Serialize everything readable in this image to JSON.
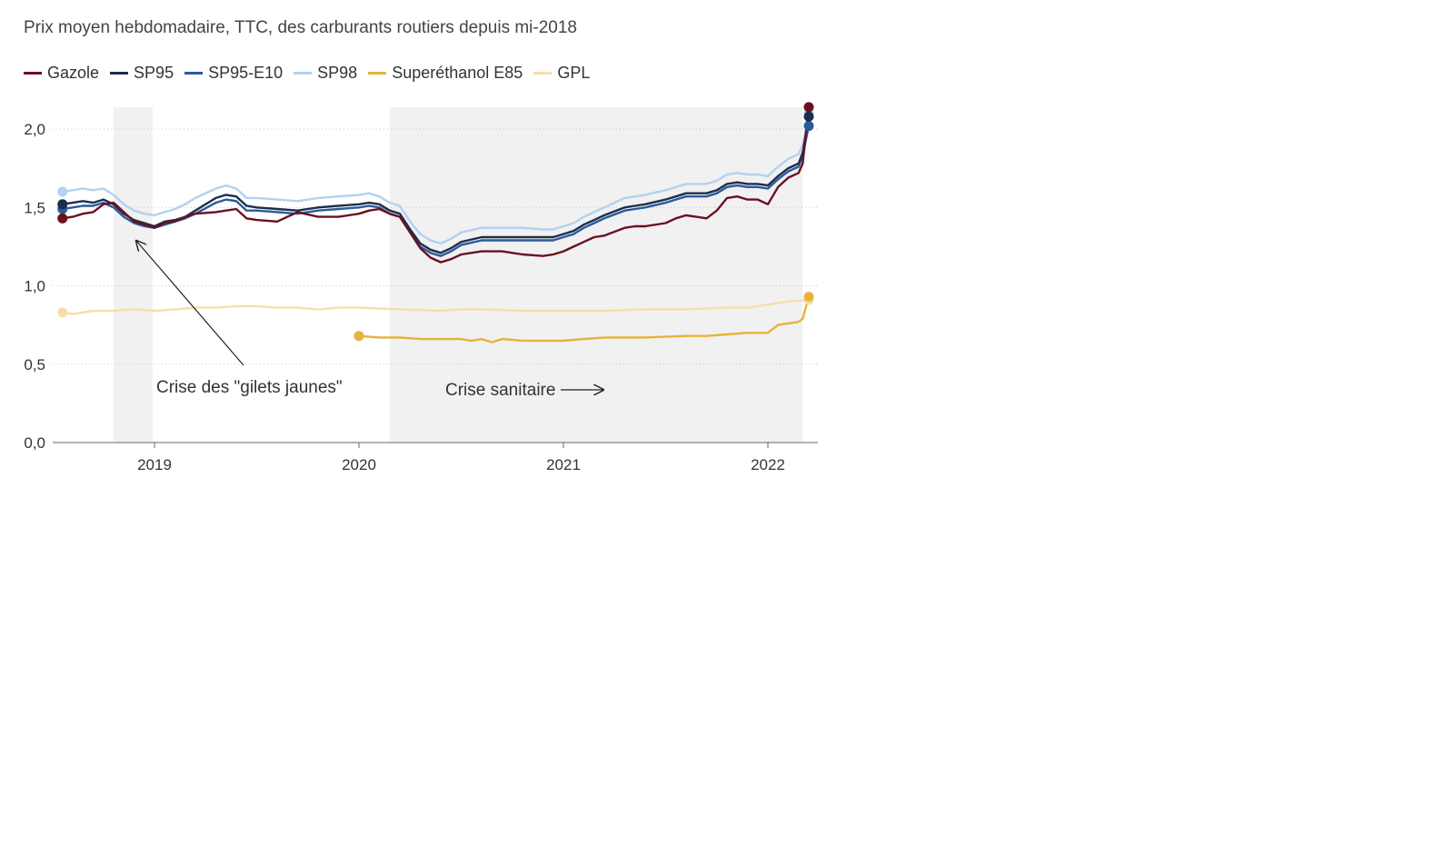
{
  "chart_data": {
    "type": "line",
    "title": "Prix moyen hebdomadaire, TTC, des carburants routiers depuis mi-2018",
    "xlabel": "",
    "ylabel": "",
    "xlim": [
      2018.55,
      2022.26
    ],
    "ylim": [
      0,
      2.2
    ],
    "y_ticks": [
      0,
      0.5,
      1,
      1.5,
      2
    ],
    "y_tick_labels": [
      "0,0",
      "0,5",
      "1,0",
      "1,5",
      "2,0"
    ],
    "x_ticks": [
      2019,
      2020,
      2021,
      2022
    ],
    "x_tick_labels": [
      "2019",
      "2020",
      "2021",
      "2022"
    ],
    "grid": "horizontal dotted",
    "legend_position": "top-left",
    "shaded_periods": [
      {
        "name": "gilets-jaunes",
        "start": 2018.8,
        "end": 2018.99
      },
      {
        "name": "crise-sanitaire",
        "start": 2020.15,
        "end": 2022.17
      }
    ],
    "annotations": [
      {
        "text": "Crise des \"gilets jaunes\""
      },
      {
        "text": "Crise sanitaire"
      }
    ],
    "series": [
      {
        "name": "Gazole",
        "color": "#6b1020",
        "x": [
          2018.55,
          2018.6,
          2018.65,
          2018.7,
          2018.75,
          2018.8,
          2018.85,
          2018.9,
          2018.95,
          2019.0,
          2019.05,
          2019.1,
          2019.15,
          2019.2,
          2019.3,
          2019.35,
          2019.4,
          2019.45,
          2019.5,
          2019.6,
          2019.7,
          2019.8,
          2019.9,
          2020.0,
          2020.05,
          2020.1,
          2020.15,
          2020.2,
          2020.25,
          2020.3,
          2020.35,
          2020.4,
          2020.45,
          2020.5,
          2020.6,
          2020.7,
          2020.75,
          2020.8,
          2020.9,
          2020.95,
          2021.0,
          2021.05,
          2021.1,
          2021.15,
          2021.2,
          2021.3,
          2021.35,
          2021.4,
          2021.5,
          2021.55,
          2021.6,
          2021.65,
          2021.7,
          2021.75,
          2021.8,
          2021.85,
          2021.9,
          2021.95,
          2022.0,
          2022.05,
          2022.1,
          2022.15,
          2022.17,
          2022.2
        ],
        "values": [
          1.43,
          1.44,
          1.46,
          1.47,
          1.52,
          1.53,
          1.47,
          1.41,
          1.39,
          1.37,
          1.4,
          1.41,
          1.44,
          1.46,
          1.47,
          1.48,
          1.49,
          1.43,
          1.42,
          1.41,
          1.47,
          1.44,
          1.44,
          1.46,
          1.48,
          1.49,
          1.46,
          1.44,
          1.34,
          1.24,
          1.18,
          1.15,
          1.17,
          1.2,
          1.22,
          1.22,
          1.21,
          1.2,
          1.19,
          1.2,
          1.22,
          1.25,
          1.28,
          1.31,
          1.32,
          1.37,
          1.38,
          1.38,
          1.4,
          1.43,
          1.45,
          1.44,
          1.43,
          1.48,
          1.56,
          1.57,
          1.55,
          1.55,
          1.52,
          1.63,
          1.69,
          1.72,
          1.78,
          2.14
        ]
      },
      {
        "name": "SP95",
        "color": "#1b2e4e",
        "x": [
          2018.55,
          2018.6,
          2018.65,
          2018.7,
          2018.75,
          2018.8,
          2018.85,
          2018.9,
          2018.95,
          2019.0,
          2019.05,
          2019.1,
          2019.15,
          2019.2,
          2019.3,
          2019.35,
          2019.4,
          2019.45,
          2019.5,
          2019.6,
          2019.7,
          2019.8,
          2019.9,
          2020.0,
          2020.05,
          2020.1,
          2020.15,
          2020.2,
          2020.25,
          2020.3,
          2020.35,
          2020.4,
          2020.45,
          2020.5,
          2020.6,
          2020.7,
          2020.75,
          2020.8,
          2020.9,
          2020.95,
          2021.0,
          2021.05,
          2021.1,
          2021.15,
          2021.2,
          2021.3,
          2021.35,
          2021.4,
          2021.5,
          2021.55,
          2021.6,
          2021.65,
          2021.7,
          2021.75,
          2021.8,
          2021.85,
          2021.9,
          2021.95,
          2022.0,
          2022.05,
          2022.1,
          2022.15,
          2022.17,
          2022.2
        ],
        "values": [
          1.52,
          1.53,
          1.54,
          1.53,
          1.55,
          1.52,
          1.46,
          1.42,
          1.4,
          1.38,
          1.41,
          1.42,
          1.44,
          1.48,
          1.56,
          1.58,
          1.57,
          1.51,
          1.5,
          1.49,
          1.48,
          1.5,
          1.51,
          1.52,
          1.53,
          1.52,
          1.48,
          1.46,
          1.36,
          1.27,
          1.23,
          1.21,
          1.24,
          1.28,
          1.31,
          1.31,
          1.31,
          1.31,
          1.31,
          1.31,
          1.33,
          1.35,
          1.39,
          1.42,
          1.45,
          1.5,
          1.51,
          1.52,
          1.55,
          1.57,
          1.59,
          1.59,
          1.59,
          1.61,
          1.65,
          1.66,
          1.65,
          1.65,
          1.64,
          1.7,
          1.75,
          1.78,
          1.85,
          2.08
        ]
      },
      {
        "name": "SP95-E10",
        "color": "#2a5a9c",
        "x": [
          2018.55,
          2018.6,
          2018.65,
          2018.7,
          2018.75,
          2018.8,
          2018.85,
          2018.9,
          2018.95,
          2019.0,
          2019.05,
          2019.1,
          2019.15,
          2019.2,
          2019.3,
          2019.35,
          2019.4,
          2019.45,
          2019.5,
          2019.6,
          2019.7,
          2019.8,
          2019.9,
          2020.0,
          2020.05,
          2020.1,
          2020.15,
          2020.2,
          2020.25,
          2020.3,
          2020.35,
          2020.4,
          2020.45,
          2020.5,
          2020.6,
          2020.7,
          2020.75,
          2020.8,
          2020.9,
          2020.95,
          2021.0,
          2021.05,
          2021.1,
          2021.15,
          2021.2,
          2021.3,
          2021.35,
          2021.4,
          2021.5,
          2021.55,
          2021.6,
          2021.65,
          2021.7,
          2021.75,
          2021.8,
          2021.85,
          2021.9,
          2021.95,
          2022.0,
          2022.05,
          2022.1,
          2022.15,
          2022.17,
          2022.2
        ],
        "values": [
          1.49,
          1.5,
          1.51,
          1.51,
          1.53,
          1.5,
          1.44,
          1.4,
          1.38,
          1.37,
          1.39,
          1.41,
          1.43,
          1.46,
          1.53,
          1.55,
          1.54,
          1.48,
          1.48,
          1.47,
          1.46,
          1.48,
          1.49,
          1.5,
          1.51,
          1.5,
          1.46,
          1.44,
          1.34,
          1.25,
          1.21,
          1.19,
          1.22,
          1.26,
          1.29,
          1.29,
          1.29,
          1.29,
          1.29,
          1.29,
          1.31,
          1.33,
          1.37,
          1.4,
          1.43,
          1.48,
          1.49,
          1.5,
          1.53,
          1.55,
          1.57,
          1.57,
          1.57,
          1.59,
          1.63,
          1.64,
          1.63,
          1.63,
          1.62,
          1.68,
          1.73,
          1.76,
          1.83,
          2.02
        ]
      },
      {
        "name": "SP98",
        "color": "#b3d1f0",
        "x": [
          2018.55,
          2018.6,
          2018.65,
          2018.7,
          2018.75,
          2018.8,
          2018.85,
          2018.9,
          2018.95,
          2019.0,
          2019.05,
          2019.1,
          2019.15,
          2019.2,
          2019.3,
          2019.35,
          2019.4,
          2019.45,
          2019.5,
          2019.6,
          2019.7,
          2019.8,
          2019.9,
          2020.0,
          2020.05,
          2020.1,
          2020.15,
          2020.2,
          2020.25,
          2020.3,
          2020.35,
          2020.4,
          2020.45,
          2020.5,
          2020.6,
          2020.7,
          2020.75,
          2020.8,
          2020.9,
          2020.95,
          2021.0,
          2021.05,
          2021.1,
          2021.15,
          2021.2,
          2021.3,
          2021.35,
          2021.4,
          2021.5,
          2021.55,
          2021.6,
          2021.65,
          2021.7,
          2021.75,
          2021.8,
          2021.85,
          2021.9,
          2021.95,
          2022.0,
          2022.05,
          2022.1,
          2022.15,
          2022.17,
          2022.2
        ],
        "values": [
          1.6,
          1.61,
          1.62,
          1.61,
          1.62,
          1.58,
          1.52,
          1.48,
          1.46,
          1.45,
          1.47,
          1.49,
          1.52,
          1.56,
          1.62,
          1.64,
          1.62,
          1.56,
          1.56,
          1.55,
          1.54,
          1.56,
          1.57,
          1.58,
          1.59,
          1.57,
          1.53,
          1.51,
          1.41,
          1.33,
          1.29,
          1.27,
          1.3,
          1.34,
          1.37,
          1.37,
          1.37,
          1.37,
          1.36,
          1.36,
          1.38,
          1.4,
          1.44,
          1.47,
          1.5,
          1.56,
          1.57,
          1.58,
          1.61,
          1.63,
          1.65,
          1.65,
          1.65,
          1.67,
          1.71,
          1.72,
          1.71,
          1.71,
          1.7,
          1.76,
          1.81,
          1.84,
          1.9,
          2.1
        ]
      },
      {
        "name": "Superéthanol E85",
        "color": "#e8b23a",
        "x": [
          2020.0,
          2020.1,
          2020.2,
          2020.3,
          2020.4,
          2020.5,
          2020.55,
          2020.6,
          2020.65,
          2020.7,
          2020.8,
          2020.9,
          2021.0,
          2021.1,
          2021.2,
          2021.4,
          2021.6,
          2021.7,
          2021.8,
          2021.9,
          2022.0,
          2022.05,
          2022.15,
          2022.17,
          2022.2
        ],
        "values": [
          0.68,
          0.67,
          0.67,
          0.66,
          0.66,
          0.66,
          0.65,
          0.66,
          0.64,
          0.66,
          0.65,
          0.65,
          0.65,
          0.66,
          0.67,
          0.67,
          0.68,
          0.68,
          0.69,
          0.7,
          0.7,
          0.75,
          0.77,
          0.79,
          0.93
        ]
      },
      {
        "name": "GPL",
        "color": "#f5dfa8",
        "x": [
          2018.55,
          2018.6,
          2018.7,
          2018.8,
          2018.9,
          2019.0,
          2019.1,
          2019.2,
          2019.3,
          2019.4,
          2019.5,
          2019.6,
          2019.7,
          2019.8,
          2019.9,
          2020.0,
          2020.2,
          2020.4,
          2020.5,
          2020.6,
          2020.8,
          2021.0,
          2021.2,
          2021.4,
          2021.6,
          2021.8,
          2021.9,
          2022.0,
          2022.1,
          2022.2
        ],
        "values": [
          0.83,
          0.82,
          0.84,
          0.84,
          0.85,
          0.84,
          0.85,
          0.86,
          0.86,
          0.87,
          0.87,
          0.86,
          0.86,
          0.85,
          0.86,
          0.86,
          0.85,
          0.84,
          0.85,
          0.85,
          0.84,
          0.84,
          0.84,
          0.85,
          0.85,
          0.86,
          0.86,
          0.88,
          0.9,
          0.91
        ]
      }
    ]
  }
}
